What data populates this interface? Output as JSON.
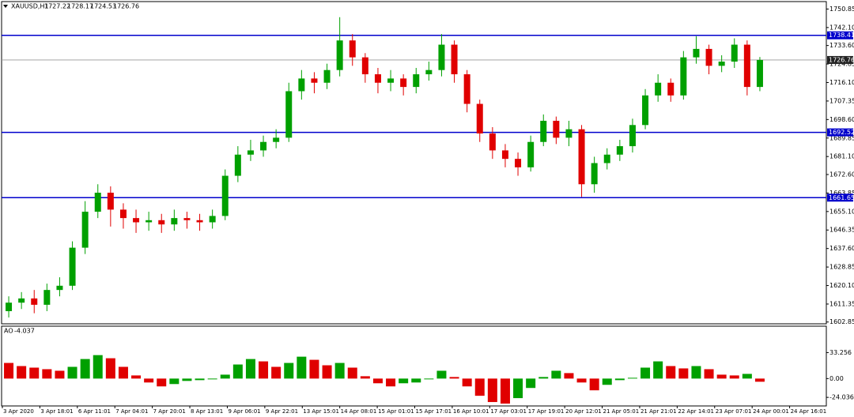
{
  "chart_data": [
    {
      "type": "candlestick",
      "symbol": "XAUUSD,H1",
      "header_prices": [
        1727.22,
        1728.17,
        1724.53,
        1726.76
      ],
      "open": [
        1608,
        1612,
        1614,
        1611,
        1618,
        1620,
        1638,
        1655,
        1664,
        1656,
        1652,
        1650,
        1651,
        1649,
        1652,
        1651,
        1650,
        1653,
        1672,
        1682,
        1684,
        1688,
        1690,
        1712,
        1718,
        1716,
        1722,
        1736,
        1728,
        1720,
        1716,
        1718,
        1714,
        1720,
        1722,
        1734,
        1720,
        1706,
        1692,
        1684,
        1680,
        1676,
        1688,
        1698,
        1690,
        1694,
        1668,
        1678,
        1682,
        1686,
        1696,
        1710,
        1716,
        1710,
        1728,
        1732,
        1724,
        1726,
        1734,
        1714
      ],
      "high": [
        1615,
        1617,
        1618,
        1621,
        1624,
        1641,
        1660,
        1668,
        1667,
        1659,
        1656,
        1655,
        1654,
        1656,
        1655,
        1654,
        1656,
        1675,
        1686,
        1689,
        1691,
        1694,
        1716,
        1722,
        1721,
        1725,
        1747,
        1739,
        1730,
        1723,
        1722,
        1720,
        1723,
        1726,
        1739,
        1736,
        1722,
        1708,
        1695,
        1687,
        1683,
        1691,
        1701,
        1700,
        1698,
        1696,
        1681,
        1685,
        1689,
        1699,
        1713,
        1720,
        1718,
        1731,
        1738,
        1734,
        1729,
        1737,
        1736,
        1728.17
      ],
      "low": [
        1605,
        1609,
        1607,
        1608,
        1615,
        1618,
        1635,
        1652,
        1648,
        1647,
        1645,
        1646,
        1645,
        1646,
        1647,
        1646,
        1647,
        1651,
        1669,
        1679,
        1681,
        1685,
        1688,
        1708,
        1711,
        1713,
        1719,
        1724,
        1716,
        1711,
        1712,
        1710,
        1711,
        1717,
        1719,
        1716,
        1702,
        1688,
        1680,
        1676,
        1672,
        1674,
        1686,
        1687,
        1686,
        1662,
        1664,
        1675,
        1679,
        1683,
        1694,
        1707,
        1707,
        1708,
        1725,
        1720,
        1721,
        1723,
        1710,
        1712
      ],
      "close": [
        1612,
        1614,
        1611,
        1618,
        1620,
        1638,
        1655,
        1664,
        1656,
        1652,
        1650,
        1651,
        1649,
        1652,
        1651,
        1650,
        1653,
        1672,
        1682,
        1684,
        1688,
        1690,
        1712,
        1718,
        1716,
        1722,
        1736,
        1728,
        1720,
        1716,
        1718,
        1714,
        1720,
        1722,
        1734,
        1720,
        1706,
        1692,
        1684,
        1680,
        1676,
        1688,
        1698,
        1690,
        1694,
        1668,
        1678,
        1682,
        1686,
        1696,
        1710,
        1716,
        1710,
        1728,
        1732,
        1724,
        1726,
        1734,
        1714,
        1726.76
      ],
      "up_color": "#00a000",
      "down_color": "#e00000",
      "levels": [
        1738.41,
        1692.52,
        1661.65
      ],
      "level_color": "#0000cc",
      "current_price": 1726.76,
      "ylim": [
        1602,
        1754
      ],
      "yticks": [
        1750.85,
        {
          "value": 1742.1,
          "label": "1742.10"
        },
        {
          "value": 1733.6,
          "label": "1733.60"
        },
        1724.85,
        {
          "value": 1716.1,
          "label": "1716.10"
        },
        1707.35,
        {
          "value": 1698.6,
          "label": "1698.60"
        },
        1689.85,
        {
          "value": 1681.1,
          "label": "1681.10"
        },
        {
          "value": 1672.6,
          "label": "1672.60"
        },
        1663.85,
        {
          "value": 1655.1,
          "label": "1655.10"
        },
        1646.35,
        {
          "value": 1637.6,
          "label": "1637.60"
        },
        1628.85,
        {
          "value": 1620.1,
          "label": "1620.10"
        },
        1611.35,
        1602.85
      ],
      "categories": [
        "3 Apr 2020",
        "3 Apr 18:01",
        "6 Apr 11:01",
        "7 Apr 04:01",
        "7 Apr 20:01",
        "8 Apr 13:01",
        "9 Apr 06:01",
        "9 Apr 22:01",
        "13 Apr 15:01",
        "14 Apr 08:01",
        "15 Apr 01:01",
        "15 Apr 17:01",
        "16 Apr 10:01",
        "17 Apr 03:01",
        "17 Apr 19:01",
        "20 Apr 12:01",
        "21 Apr 05:01",
        "21 Apr 21:01",
        "22 Apr 14:01",
        "23 Apr 07:01",
        "24 Apr 00:01",
        "24 Apr 16:01"
      ]
    },
    {
      "type": "bar",
      "title": "AO",
      "values": [
        20,
        16,
        14,
        12,
        10,
        15,
        25,
        30,
        26,
        15,
        4,
        -5,
        -10,
        -7,
        -3,
        -2,
        -1,
        5,
        18,
        25,
        22,
        15,
        20,
        28,
        24,
        17,
        20,
        14,
        3,
        -6,
        -10,
        -6,
        -5,
        -1,
        10,
        2,
        -10,
        -22,
        -30,
        -32,
        -25,
        -12,
        2,
        10,
        7,
        -5,
        -15,
        -8,
        -2,
        1,
        14,
        22,
        16,
        13,
        16,
        12,
        5,
        4,
        6,
        -4.037
      ],
      "up_color": "#00a000",
      "down_color": "#e00000",
      "ylim": [
        -35,
        66
      ],
      "yticks": [
        33.256,
        {
          "value": 0,
          "label": "0.00"
        },
        -24.036
      ]
    }
  ]
}
